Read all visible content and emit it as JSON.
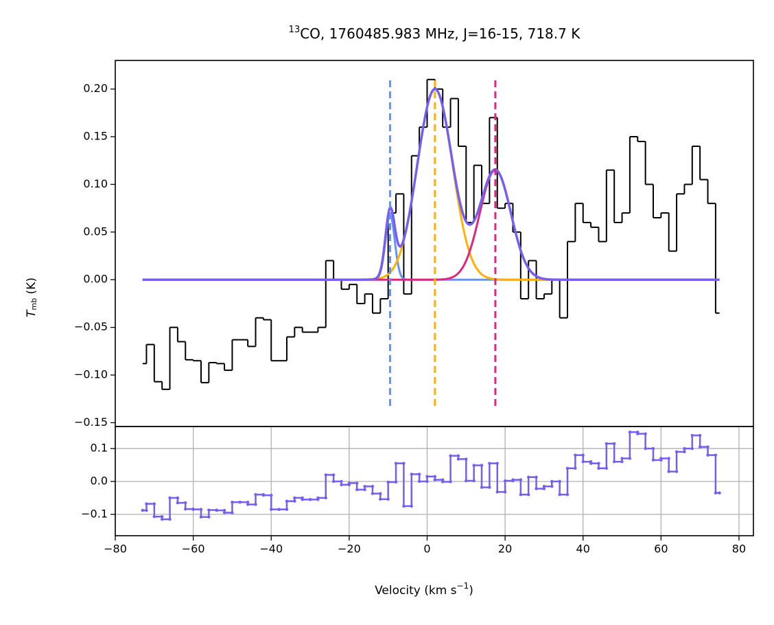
{
  "chart_data": [
    {
      "type": "step",
      "title_superscript": "13",
      "title": "CO, 1760485.983 MHz, J=16-15, 718.7 K",
      "ylabel_symbol": "T",
      "ylabel_subscript": "mb",
      "ylabel_unit": " (K)",
      "color": "#000000",
      "x": [
        -73,
        -71,
        -69,
        -67,
        -65,
        -63,
        -61,
        -59,
        -57,
        -55,
        -53,
        -51,
        -49,
        -47,
        -45,
        -43,
        -41,
        -39,
        -37,
        -35,
        -33,
        -31,
        -29,
        -27,
        -25,
        -23,
        -21,
        -19,
        -17,
        -15,
        -13,
        -11,
        -9,
        -7,
        -5,
        -3,
        -1,
        1,
        3,
        5,
        7,
        9,
        11,
        13,
        15,
        17,
        19,
        21,
        23,
        25,
        27,
        29,
        31,
        33,
        35,
        37,
        39,
        41,
        43,
        45,
        47,
        49,
        51,
        53,
        55,
        57,
        59,
        61,
        63,
        65,
        67,
        69,
        71,
        73,
        75
      ],
      "values": [
        -0.088,
        -0.068,
        -0.107,
        -0.115,
        -0.05,
        -0.065,
        -0.084,
        -0.085,
        -0.108,
        -0.087,
        -0.088,
        -0.095,
        -0.063,
        -0.063,
        -0.07,
        -0.04,
        -0.042,
        -0.085,
        -0.085,
        -0.06,
        -0.05,
        -0.055,
        -0.055,
        -0.05,
        0.02,
        0.0,
        -0.01,
        -0.005,
        -0.025,
        -0.015,
        -0.035,
        -0.02,
        0.07,
        0.09,
        -0.015,
        0.13,
        0.16,
        0.21,
        0.2,
        0.16,
        0.19,
        0.14,
        0.06,
        0.12,
        0.08,
        0.17,
        0.075,
        0.08,
        0.05,
        -0.02,
        0.02,
        -0.02,
        -0.015,
        0.0,
        -0.04,
        0.04,
        0.08,
        0.06,
        0.055,
        0.04,
        0.115,
        0.06,
        0.07,
        0.15,
        0.145,
        0.1,
        0.065,
        0.07,
        0.03,
        0.09,
        0.1,
        0.14,
        0.105,
        0.08,
        -0.035
      ],
      "components": [
        {
          "color": "#6495ed",
          "amplitude": 0.068,
          "center": -9.5,
          "width": 1.2
        },
        {
          "color": "#ffb000",
          "amplitude": 0.2,
          "center": 2.0,
          "width": 4.5
        },
        {
          "color": "#dc267f",
          "amplitude": 0.115,
          "center": 17.5,
          "width": 4.0
        }
      ],
      "model_color": "#785ef0",
      "xlim": [
        -80,
        83.7
      ],
      "ylim": [
        -0.154,
        0.23
      ],
      "yticks": [
        {
          "value": -0.15,
          "label": "−0.15"
        },
        {
          "value": -0.1,
          "label": "−0.10"
        },
        {
          "value": -0.05,
          "label": "−0.05"
        },
        {
          "value": 0,
          "label": "0.00"
        },
        {
          "value": 0.05,
          "label": "0.05"
        },
        {
          "value": 0.1,
          "label": "0.10"
        },
        {
          "value": 0.15,
          "label": "0.15"
        },
        {
          "value": 0.2,
          "label": "0.20"
        }
      ]
    },
    {
      "type": "step",
      "color": "#785ef0",
      "markers": true,
      "grid": true,
      "x": [
        -73,
        -71,
        -69,
        -67,
        -65,
        -63,
        -61,
        -59,
        -57,
        -55,
        -53,
        -51,
        -49,
        -47,
        -45,
        -43,
        -41,
        -39,
        -37,
        -35,
        -33,
        -31,
        -29,
        -27,
        -25,
        -23,
        -21,
        -19,
        -17,
        -15,
        -13,
        -11,
        -9,
        -7,
        -5,
        -3,
        -1,
        1,
        3,
        5,
        7,
        9,
        11,
        13,
        15,
        17,
        19,
        21,
        23,
        25,
        27,
        29,
        31,
        33,
        35,
        37,
        39,
        41,
        43,
        45,
        47,
        49,
        51,
        53,
        55,
        57,
        59,
        61,
        63,
        65,
        67,
        69,
        71,
        73,
        75
      ],
      "values": [
        -0.088,
        -0.068,
        -0.107,
        -0.115,
        -0.05,
        -0.065,
        -0.084,
        -0.085,
        -0.108,
        -0.087,
        -0.088,
        -0.095,
        -0.063,
        -0.063,
        -0.07,
        -0.04,
        -0.042,
        -0.085,
        -0.085,
        -0.06,
        -0.05,
        -0.055,
        -0.055,
        -0.05,
        0.02,
        0.0,
        -0.01,
        -0.005,
        -0.025,
        -0.015,
        -0.037,
        -0.054,
        -0.002,
        0.055,
        -0.075,
        0.022,
        0.0,
        0.015,
        0.005,
        -0.001,
        0.078,
        0.068,
        0.002,
        0.049,
        -0.018,
        0.055,
        -0.032,
        0.002,
        0.005,
        -0.04,
        0.013,
        -0.022,
        -0.015,
        0.0,
        -0.04,
        0.04,
        0.08,
        0.06,
        0.055,
        0.04,
        0.115,
        0.06,
        0.07,
        0.15,
        0.145,
        0.1,
        0.065,
        0.07,
        0.03,
        0.09,
        0.1,
        0.14,
        0.105,
        0.08,
        -0.035
      ],
      "xlabel_parts": [
        "Velocity (km s",
        "−1",
        ")"
      ],
      "xlim": [
        -80,
        83.7
      ],
      "ylim": [
        -0.165,
        0.167
      ],
      "xticks": [
        {
          "value": -80,
          "label": "−80"
        },
        {
          "value": -60,
          "label": "−60"
        },
        {
          "value": -40,
          "label": "−40"
        },
        {
          "value": -20,
          "label": "−20"
        },
        0,
        20,
        40,
        60,
        80
      ],
      "yticks": [
        {
          "value": -0.1,
          "label": "−0.1"
        },
        {
          "value": 0,
          "label": "0.0"
        },
        {
          "value": 0.1,
          "label": "0.1"
        }
      ]
    }
  ]
}
